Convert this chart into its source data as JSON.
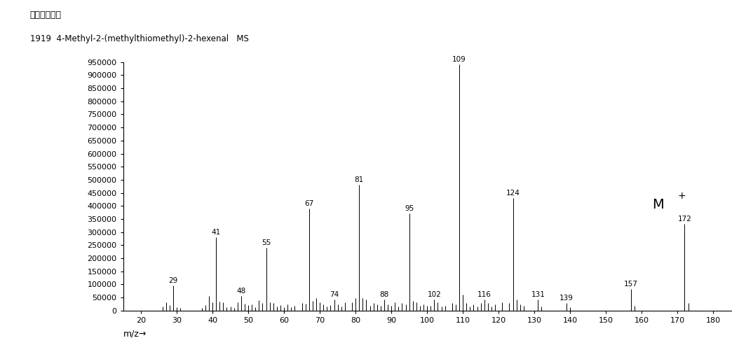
{
  "title_line1": "アバンダンス",
  "title_line2": "1919  4-Methyl-2-(methylthiomethyl)-2-hexenal   MS",
  "xlabel": "m/z→",
  "xlim": [
    15,
    185
  ],
  "ylim": [
    0,
    950000
  ],
  "xticks": [
    20,
    30,
    40,
    50,
    60,
    70,
    80,
    90,
    100,
    110,
    120,
    130,
    140,
    150,
    160,
    170,
    180
  ],
  "yticks": [
    0,
    50000,
    100000,
    150000,
    200000,
    250000,
    300000,
    350000,
    400000,
    450000,
    500000,
    550000,
    600000,
    650000,
    700000,
    750000,
    800000,
    850000,
    900000,
    950000
  ],
  "peaks": [
    {
      "mz": 26,
      "intensity": 15000,
      "label": null
    },
    {
      "mz": 27,
      "intensity": 30000,
      "label": null
    },
    {
      "mz": 28,
      "intensity": 20000,
      "label": null
    },
    {
      "mz": 29,
      "intensity": 95000,
      "label": "29"
    },
    {
      "mz": 30,
      "intensity": 12000,
      "label": null
    },
    {
      "mz": 31,
      "intensity": 10000,
      "label": null
    },
    {
      "mz": 37,
      "intensity": 10000,
      "label": null
    },
    {
      "mz": 38,
      "intensity": 20000,
      "label": null
    },
    {
      "mz": 39,
      "intensity": 55000,
      "label": null
    },
    {
      "mz": 40,
      "intensity": 30000,
      "label": null
    },
    {
      "mz": 41,
      "intensity": 280000,
      "label": "41"
    },
    {
      "mz": 42,
      "intensity": 35000,
      "label": null
    },
    {
      "mz": 43,
      "intensity": 30000,
      "label": null
    },
    {
      "mz": 44,
      "intensity": 12000,
      "label": null
    },
    {
      "mz": 45,
      "intensity": 15000,
      "label": null
    },
    {
      "mz": 46,
      "intensity": 10000,
      "label": null
    },
    {
      "mz": 47,
      "intensity": 30000,
      "label": null
    },
    {
      "mz": 48,
      "intensity": 55000,
      "label": "48"
    },
    {
      "mz": 49,
      "intensity": 25000,
      "label": null
    },
    {
      "mz": 50,
      "intensity": 20000,
      "label": null
    },
    {
      "mz": 51,
      "intensity": 22000,
      "label": null
    },
    {
      "mz": 52,
      "intensity": 12000,
      "label": null
    },
    {
      "mz": 53,
      "intensity": 40000,
      "label": null
    },
    {
      "mz": 54,
      "intensity": 28000,
      "label": null
    },
    {
      "mz": 55,
      "intensity": 240000,
      "label": "55"
    },
    {
      "mz": 56,
      "intensity": 32000,
      "label": null
    },
    {
      "mz": 57,
      "intensity": 28000,
      "label": null
    },
    {
      "mz": 58,
      "intensity": 15000,
      "label": null
    },
    {
      "mz": 59,
      "intensity": 20000,
      "label": null
    },
    {
      "mz": 60,
      "intensity": 12000,
      "label": null
    },
    {
      "mz": 61,
      "intensity": 22000,
      "label": null
    },
    {
      "mz": 62,
      "intensity": 12000,
      "label": null
    },
    {
      "mz": 63,
      "intensity": 18000,
      "label": null
    },
    {
      "mz": 65,
      "intensity": 28000,
      "label": null
    },
    {
      "mz": 66,
      "intensity": 25000,
      "label": null
    },
    {
      "mz": 67,
      "intensity": 390000,
      "label": "67"
    },
    {
      "mz": 68,
      "intensity": 38000,
      "label": null
    },
    {
      "mz": 69,
      "intensity": 48000,
      "label": null
    },
    {
      "mz": 70,
      "intensity": 30000,
      "label": null
    },
    {
      "mz": 71,
      "intensity": 22000,
      "label": null
    },
    {
      "mz": 72,
      "intensity": 15000,
      "label": null
    },
    {
      "mz": 73,
      "intensity": 20000,
      "label": null
    },
    {
      "mz": 74,
      "intensity": 42000,
      "label": "74"
    },
    {
      "mz": 75,
      "intensity": 22000,
      "label": null
    },
    {
      "mz": 76,
      "intensity": 15000,
      "label": null
    },
    {
      "mz": 77,
      "intensity": 32000,
      "label": null
    },
    {
      "mz": 79,
      "intensity": 32000,
      "label": null
    },
    {
      "mz": 80,
      "intensity": 48000,
      "label": null
    },
    {
      "mz": 81,
      "intensity": 480000,
      "label": "81"
    },
    {
      "mz": 82,
      "intensity": 48000,
      "label": null
    },
    {
      "mz": 83,
      "intensity": 42000,
      "label": null
    },
    {
      "mz": 84,
      "intensity": 18000,
      "label": null
    },
    {
      "mz": 85,
      "intensity": 28000,
      "label": null
    },
    {
      "mz": 86,
      "intensity": 22000,
      "label": null
    },
    {
      "mz": 87,
      "intensity": 18000,
      "label": null
    },
    {
      "mz": 88,
      "intensity": 42000,
      "label": "88"
    },
    {
      "mz": 89,
      "intensity": 22000,
      "label": null
    },
    {
      "mz": 90,
      "intensity": 18000,
      "label": null
    },
    {
      "mz": 91,
      "intensity": 32000,
      "label": null
    },
    {
      "mz": 92,
      "intensity": 15000,
      "label": null
    },
    {
      "mz": 93,
      "intensity": 28000,
      "label": null
    },
    {
      "mz": 94,
      "intensity": 22000,
      "label": null
    },
    {
      "mz": 95,
      "intensity": 370000,
      "label": "95"
    },
    {
      "mz": 96,
      "intensity": 38000,
      "label": null
    },
    {
      "mz": 97,
      "intensity": 32000,
      "label": null
    },
    {
      "mz": 98,
      "intensity": 18000,
      "label": null
    },
    {
      "mz": 99,
      "intensity": 22000,
      "label": null
    },
    {
      "mz": 100,
      "intensity": 18000,
      "label": null
    },
    {
      "mz": 101,
      "intensity": 18000,
      "label": null
    },
    {
      "mz": 102,
      "intensity": 42000,
      "label": "102"
    },
    {
      "mz": 103,
      "intensity": 32000,
      "label": null
    },
    {
      "mz": 104,
      "intensity": 15000,
      "label": null
    },
    {
      "mz": 105,
      "intensity": 18000,
      "label": null
    },
    {
      "mz": 107,
      "intensity": 28000,
      "label": null
    },
    {
      "mz": 108,
      "intensity": 22000,
      "label": null
    },
    {
      "mz": 109,
      "intensity": 940000,
      "label": "109"
    },
    {
      "mz": 110,
      "intensity": 62000,
      "label": null
    },
    {
      "mz": 111,
      "intensity": 28000,
      "label": null
    },
    {
      "mz": 112,
      "intensity": 15000,
      "label": null
    },
    {
      "mz": 113,
      "intensity": 22000,
      "label": null
    },
    {
      "mz": 114,
      "intensity": 15000,
      "label": null
    },
    {
      "mz": 115,
      "intensity": 28000,
      "label": null
    },
    {
      "mz": 116,
      "intensity": 42000,
      "label": "116"
    },
    {
      "mz": 117,
      "intensity": 28000,
      "label": null
    },
    {
      "mz": 118,
      "intensity": 15000,
      "label": null
    },
    {
      "mz": 119,
      "intensity": 22000,
      "label": null
    },
    {
      "mz": 121,
      "intensity": 32000,
      "label": null
    },
    {
      "mz": 123,
      "intensity": 28000,
      "label": null
    },
    {
      "mz": 124,
      "intensity": 430000,
      "label": "124"
    },
    {
      "mz": 125,
      "intensity": 42000,
      "label": null
    },
    {
      "mz": 126,
      "intensity": 22000,
      "label": null
    },
    {
      "mz": 127,
      "intensity": 18000,
      "label": null
    },
    {
      "mz": 131,
      "intensity": 42000,
      "label": "131"
    },
    {
      "mz": 132,
      "intensity": 15000,
      "label": null
    },
    {
      "mz": 139,
      "intensity": 28000,
      "label": "139"
    },
    {
      "mz": 140,
      "intensity": 12000,
      "label": null
    },
    {
      "mz": 157,
      "intensity": 82000,
      "label": "157"
    },
    {
      "mz": 158,
      "intensity": 18000,
      "label": null
    },
    {
      "mz": 172,
      "intensity": 330000,
      "label": "172"
    },
    {
      "mz": 173,
      "intensity": 28000,
      "label": null
    }
  ],
  "mplus_text": "M",
  "mplus_sup": "+",
  "mplus_x": 163,
  "mplus_y": 380000,
  "background_color": "#ffffff",
  "line_color": "#000000",
  "font_color": "#000000"
}
